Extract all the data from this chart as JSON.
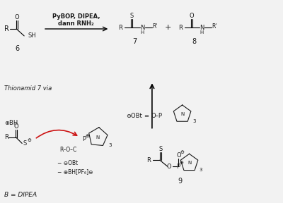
{
  "background_color": "#f0f0f0",
  "text_color": "#1a1a1a",
  "red_color": "#cc1111",
  "reagents_line1": "PyBOP, DIPEA,",
  "reagents_line2": "dann RNH₂",
  "thionamid_label": "Thionamid 7 via",
  "b_dipea_label": "B = DIPEA",
  "minus_obt": "− ⊖OBt",
  "minus_bhpf6": "− ⊕BH[PF₆]⊖",
  "figsize": [
    4.0,
    2.88
  ],
  "dpi": 100
}
